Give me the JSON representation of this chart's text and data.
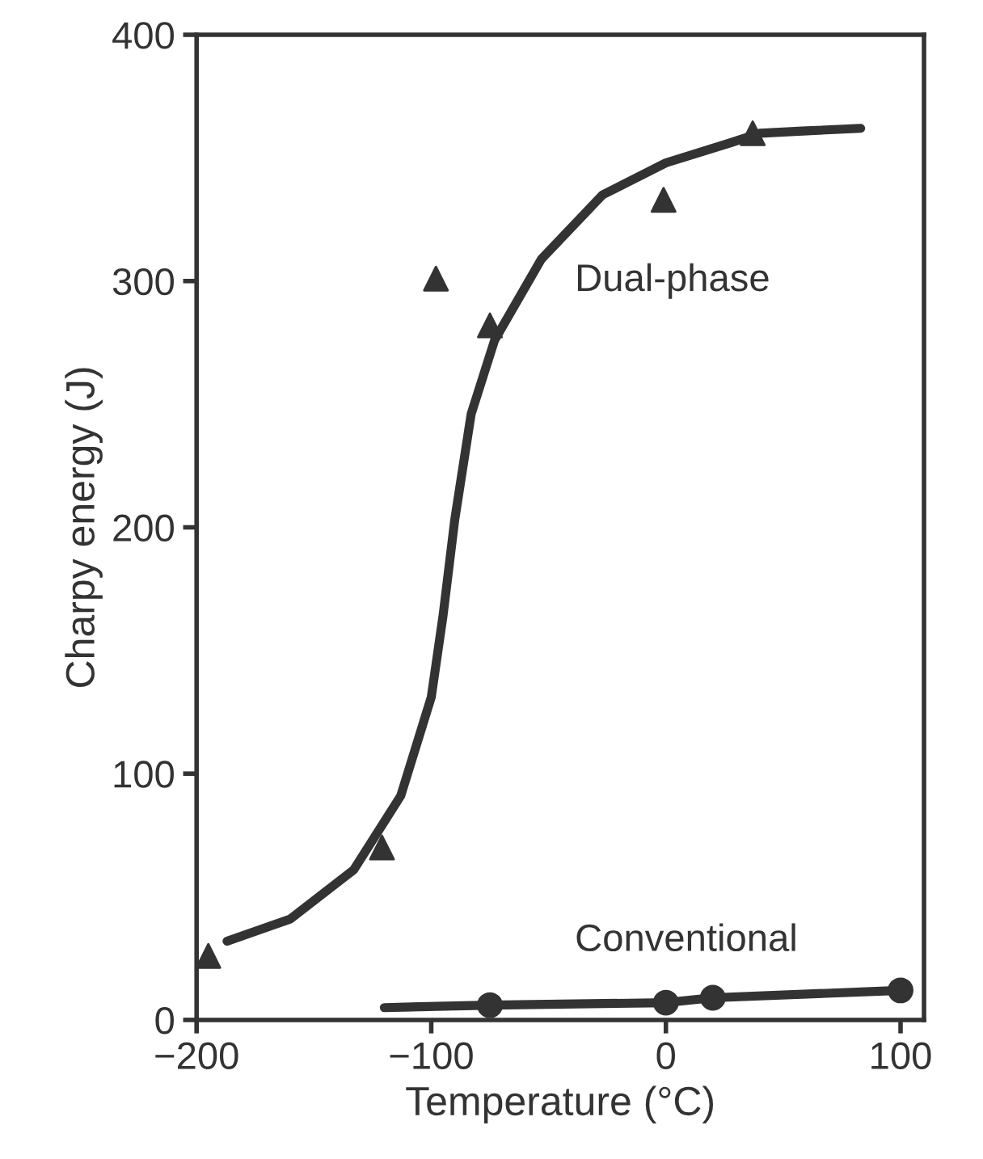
{
  "chart_data": {
    "type": "line",
    "xlabel": "Temperature (°C)",
    "ylabel": "Charpy energy (J)",
    "xlim": [
      -200,
      110
    ],
    "ylim": [
      0,
      400
    ],
    "xticks": [
      {
        "value": -200,
        "label": "−200"
      },
      {
        "value": -100,
        "label": "−100"
      },
      0,
      100
    ],
    "yticks": [
      0,
      100,
      200,
      300,
      400
    ],
    "grid": false,
    "legend": false,
    "series": [
      {
        "color": "#333333",
        "marker": "none",
        "x": [
          -187,
          -160,
          -133,
          -113,
          -100,
          -95,
          -90,
          -83,
          -73,
          -53,
          -27,
          0,
          27,
          40,
          60,
          83
        ],
        "values": [
          32,
          41,
          61,
          91,
          131,
          164,
          203,
          246,
          276,
          309,
          335,
          348,
          356,
          360,
          361,
          362
        ]
      },
      {
        "type": "scatter",
        "color": "#333333",
        "marker": "triangle",
        "x": [
          -195,
          -121,
          -98,
          -75,
          -1,
          37
        ],
        "values": [
          26,
          70,
          301,
          282,
          333,
          360
        ]
      },
      {
        "type": "line",
        "color": "#333333",
        "marker": "none",
        "x": [
          -120,
          -75,
          0,
          20,
          100
        ],
        "values": [
          5,
          6,
          7,
          9,
          12
        ]
      },
      {
        "type": "scatter",
        "color": "#333333",
        "marker": "circle",
        "x": [
          -75,
          0,
          20,
          100
        ],
        "values": [
          6,
          7,
          9,
          12
        ]
      }
    ],
    "annotations": [
      "Dual-phase",
      "Conventional"
    ]
  }
}
